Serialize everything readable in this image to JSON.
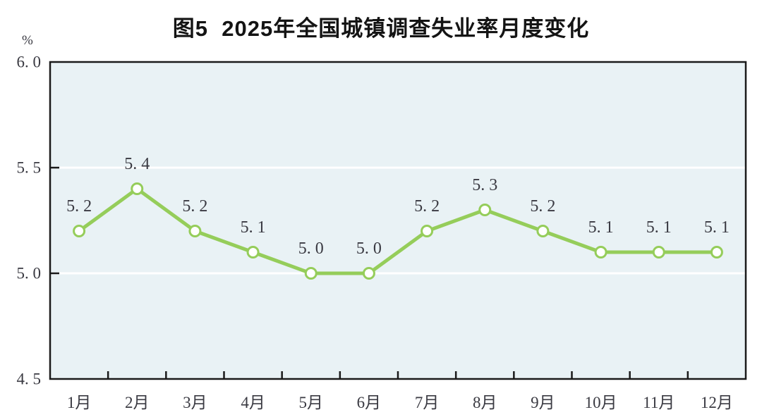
{
  "figure": {
    "title": "图5  2025年全国城镇调查失业率月度变化",
    "unit_label": "%"
  },
  "chart_data": {
    "type": "line",
    "title": "图5  2025年全国城镇调查失业率月度变化",
    "categories": [
      "1月",
      "2月",
      "3月",
      "4月",
      "5月",
      "6月",
      "7月",
      "8月",
      "9月",
      "10月",
      "11月",
      "12月"
    ],
    "values": [
      5.2,
      5.4,
      5.2,
      5.1,
      5.0,
      5.0,
      5.2,
      5.3,
      5.2,
      5.1,
      5.1,
      5.1
    ],
    "point_labels": [
      "5.2",
      "5.4",
      "5.2",
      "5.1",
      "5.0",
      "5.0",
      "5.2",
      "5.3",
      "5.2",
      "5.1",
      "5.1",
      "5.1"
    ],
    "xlabel": "",
    "ylabel": "%",
    "ylim": [
      4.5,
      6.0
    ],
    "yticks": [
      4.5,
      5.0,
      5.5,
      6.0
    ],
    "ytick_labels": [
      "4.5",
      "5.0",
      "5.5",
      "6.0"
    ],
    "grid": "horizontal white gridlines at interior ticks",
    "legend": "none",
    "marker": "circle-open",
    "colors": {
      "line": "#95cd5a",
      "marker_fill": "#ffffff",
      "plot_background": "#e9f2f5",
      "gridline": "#ffffff",
      "axis": "#1a1a1a",
      "label": "#3a3a42",
      "title": "#141414"
    }
  }
}
